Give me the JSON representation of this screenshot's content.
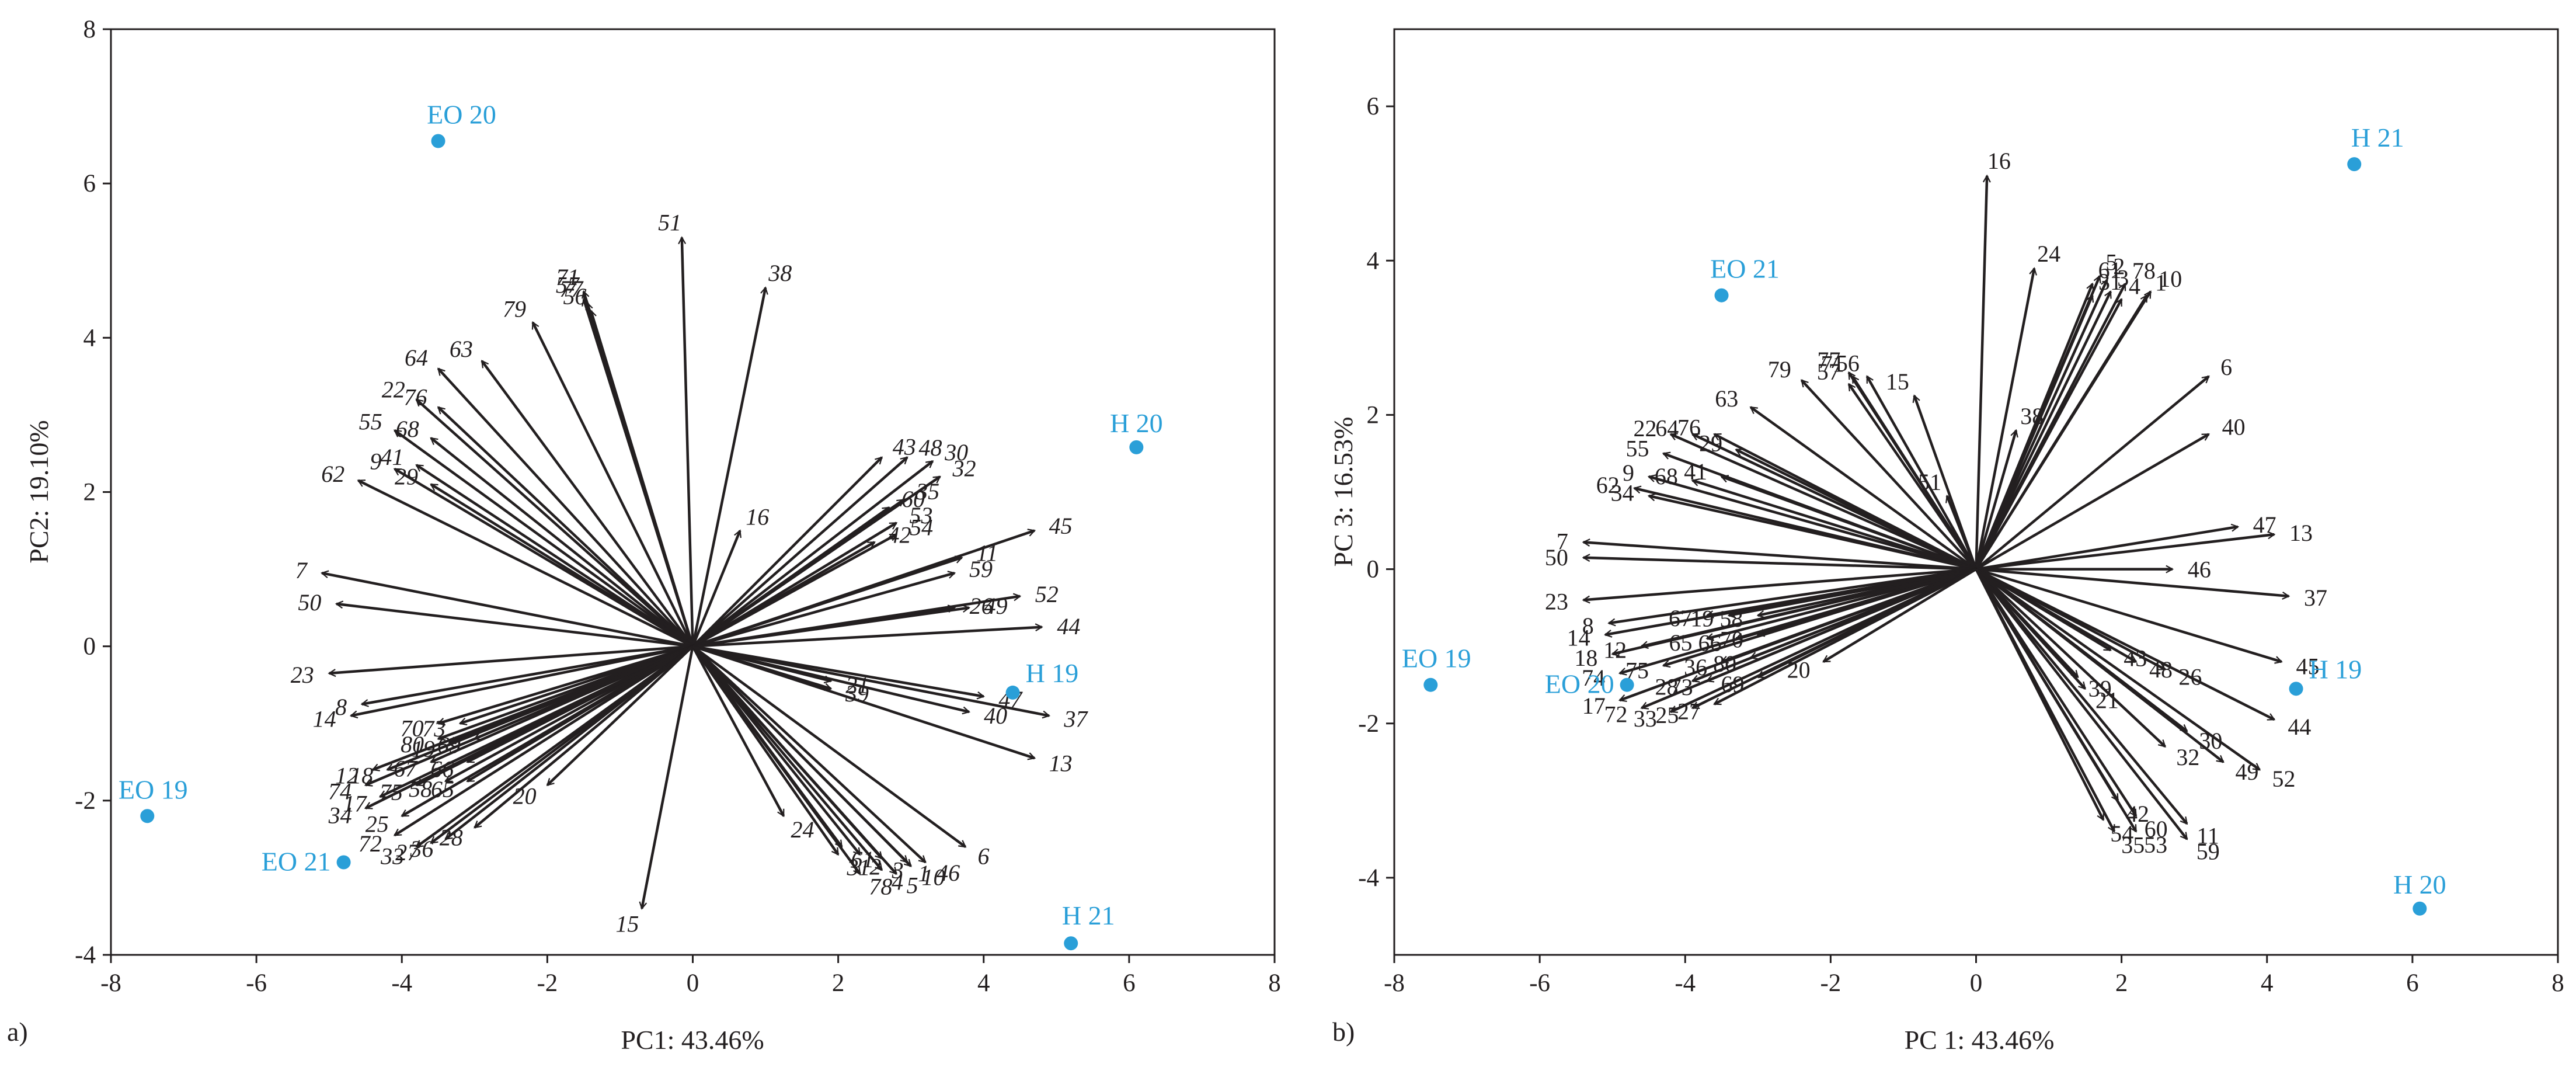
{
  "chart_data": [
    {
      "panel": "a)",
      "type": "scatter",
      "subtype": "pca-biplot",
      "xlabel": "PC1: 43.46%",
      "ylabel": "PC2: 19.10%",
      "xlim": [
        -8,
        8
      ],
      "ylim": [
        -4,
        8
      ],
      "xticks": [
        "-8",
        "-6",
        "-4",
        "-2",
        "0",
        "2",
        "4",
        "6",
        "8"
      ],
      "yticks": [
        "-4",
        "-2",
        "0",
        "2",
        "4",
        "6",
        "8"
      ],
      "label_style": "italic",
      "observations": [
        {
          "label": "EO 20",
          "x": -3.5,
          "y": 6.55
        },
        {
          "label": "H 20",
          "x": 6.1,
          "y": 2.58
        },
        {
          "label": "H 19",
          "x": 4.4,
          "y": -0.6
        },
        {
          "label": "EO 19",
          "x": -7.5,
          "y": -2.2
        },
        {
          "label": "EO 21",
          "x": -4.8,
          "y": -2.8
        },
        {
          "label": "H 21",
          "x": 5.2,
          "y": -3.85
        }
      ],
      "variables": [
        {
          "label": "51",
          "x": -0.15,
          "y": 5.3
        },
        {
          "label": "38",
          "x": 1.0,
          "y": 4.65
        },
        {
          "label": "71",
          "x": -1.5,
          "y": 4.6
        },
        {
          "label": "57",
          "x": -1.5,
          "y": 4.5
        },
        {
          "label": "77",
          "x": -1.45,
          "y": 4.45
        },
        {
          "label": "56",
          "x": -1.4,
          "y": 4.35
        },
        {
          "label": "79",
          "x": -2.2,
          "y": 4.2
        },
        {
          "label": "64",
          "x": -3.5,
          "y": 3.6
        },
        {
          "label": "63",
          "x": -2.9,
          "y": 3.7
        },
        {
          "label": "22",
          "x": -3.8,
          "y": 3.2
        },
        {
          "label": "76",
          "x": -3.5,
          "y": 3.1
        },
        {
          "label": "55",
          "x": -4.1,
          "y": 2.8
        },
        {
          "label": "68",
          "x": -3.6,
          "y": 2.7
        },
        {
          "label": "41",
          "x": -3.8,
          "y": 2.35
        },
        {
          "label": "9",
          "x": -4.1,
          "y": 2.3
        },
        {
          "label": "29",
          "x": -3.6,
          "y": 2.1
        },
        {
          "label": "62",
          "x": -4.6,
          "y": 2.15
        },
        {
          "label": "16",
          "x": 0.65,
          "y": 1.5
        },
        {
          "label": "43",
          "x": 2.6,
          "y": 2.45
        },
        {
          "label": "48",
          "x": 2.95,
          "y": 2.45
        },
        {
          "label": "30",
          "x": 3.3,
          "y": 2.4
        },
        {
          "label": "32",
          "x": 3.4,
          "y": 2.2
        },
        {
          "label": "60",
          "x": 2.7,
          "y": 1.8
        },
        {
          "label": "35",
          "x": 2.9,
          "y": 1.9
        },
        {
          "label": "53",
          "x": 2.8,
          "y": 1.6
        },
        {
          "label": "42",
          "x": 2.5,
          "y": 1.35
        },
        {
          "label": "54",
          "x": 2.8,
          "y": 1.45
        },
        {
          "label": "45",
          "x": 4.7,
          "y": 1.5
        },
        {
          "label": "11",
          "x": 3.7,
          "y": 1.15
        },
        {
          "label": "59",
          "x": 3.6,
          "y": 0.95
        },
        {
          "label": "26",
          "x": 3.6,
          "y": 0.5
        },
        {
          "label": "49",
          "x": 3.8,
          "y": 0.5
        },
        {
          "label": "52",
          "x": 4.5,
          "y": 0.65
        },
        {
          "label": "44",
          "x": 4.8,
          "y": 0.25
        },
        {
          "label": "21",
          "x": 1.9,
          "y": -0.45
        },
        {
          "label": "39",
          "x": 1.9,
          "y": -0.55
        },
        {
          "label": "47",
          "x": 4.0,
          "y": -0.65
        },
        {
          "label": "40",
          "x": 3.8,
          "y": -0.85
        },
        {
          "label": "37",
          "x": 4.9,
          "y": -0.9
        },
        {
          "label": "13",
          "x": 4.7,
          "y": -1.45
        },
        {
          "label": "7",
          "x": -5.1,
          "y": 0.95
        },
        {
          "label": "50",
          "x": -4.9,
          "y": 0.55
        },
        {
          "label": "23",
          "x": -5.0,
          "y": -0.35
        },
        {
          "label": "8",
          "x": -4.55,
          "y": -0.75
        },
        {
          "label": "14",
          "x": -4.7,
          "y": -0.9
        },
        {
          "label": "70",
          "x": -3.5,
          "y": -1.0
        },
        {
          "label": "73",
          "x": -3.2,
          "y": -1.0
        },
        {
          "label": "80",
          "x": -3.5,
          "y": -1.2
        },
        {
          "label": "19",
          "x": -3.35,
          "y": -1.25
        },
        {
          "label": "69",
          "x": -3.0,
          "y": -1.2
        },
        {
          "label": "12",
          "x": -4.4,
          "y": -1.6
        },
        {
          "label": "18",
          "x": -4.2,
          "y": -1.6
        },
        {
          "label": "67",
          "x": -3.6,
          "y": -1.5
        },
        {
          "label": "66",
          "x": -3.1,
          "y": -1.5
        },
        {
          "label": "74",
          "x": -4.5,
          "y": -1.8
        },
        {
          "label": "17",
          "x": -4.3,
          "y": -1.95
        },
        {
          "label": "75",
          "x": -3.8,
          "y": -1.8
        },
        {
          "label": "58",
          "x": -3.4,
          "y": -1.75
        },
        {
          "label": "65",
          "x": -3.1,
          "y": -1.75
        },
        {
          "label": "34",
          "x": -4.5,
          "y": -2.1
        },
        {
          "label": "25",
          "x": -4.0,
          "y": -2.2
        },
        {
          "label": "72",
          "x": -4.1,
          "y": -2.45
        },
        {
          "label": "33",
          "x": -3.8,
          "y": -2.6
        },
        {
          "label": "27",
          "x": -3.6,
          "y": -2.55
        },
        {
          "label": "36",
          "x": -3.4,
          "y": -2.5
        },
        {
          "label": "28",
          "x": -3.0,
          "y": -2.35
        },
        {
          "label": "20",
          "x": -2.0,
          "y": -1.8
        },
        {
          "label": "15",
          "x": -0.7,
          "y": -3.4
        },
        {
          "label": "24",
          "x": 1.25,
          "y": -2.2
        },
        {
          "label": "61",
          "x": 2.05,
          "y": -2.6
        },
        {
          "label": "31",
          "x": 2.0,
          "y": -2.7
        },
        {
          "label": "2",
          "x": 2.3,
          "y": -2.7
        },
        {
          "label": "3",
          "x": 2.6,
          "y": -2.75
        },
        {
          "label": "78",
          "x": 2.3,
          "y": -2.95
        },
        {
          "label": "4",
          "x": 2.6,
          "y": -2.9
        },
        {
          "label": "5",
          "x": 2.8,
          "y": -2.95
        },
        {
          "label": "1",
          "x": 2.95,
          "y": -2.8
        },
        {
          "label": "10",
          "x": 3.0,
          "y": -2.85
        },
        {
          "label": "46",
          "x": 3.2,
          "y": -2.8
        },
        {
          "label": "6",
          "x": 3.75,
          "y": -2.6
        }
      ]
    },
    {
      "panel": "b)",
      "type": "scatter",
      "subtype": "pca-biplot",
      "xlabel": "PC 1: 43.46%",
      "ylabel": "PC 3: 16.53%",
      "xlim": [
        -8,
        8
      ],
      "ylim": [
        -5,
        7
      ],
      "xticks": [
        "-8",
        "-6",
        "-4",
        "-2",
        "0",
        "2",
        "4",
        "6",
        "8"
      ],
      "yticks": [
        "-4",
        "-2",
        "0",
        "2",
        "4",
        "6"
      ],
      "label_style": "upright",
      "observations": [
        {
          "label": "H 21",
          "x": 5.2,
          "y": 5.25
        },
        {
          "label": "EO 21",
          "x": -3.5,
          "y": 3.55
        },
        {
          "label": "EO 19",
          "x": -7.5,
          "y": -1.5
        },
        {
          "label": "EO 20",
          "x": -4.8,
          "y": -1.5
        },
        {
          "label": "H 19",
          "x": 4.4,
          "y": -1.55
        },
        {
          "label": "H 20",
          "x": 6.1,
          "y": -4.4
        }
      ],
      "variables": [
        {
          "label": "16",
          "x": 0.15,
          "y": 5.1
        },
        {
          "label": "24",
          "x": 0.8,
          "y": 3.9
        },
        {
          "label": "5",
          "x": 1.7,
          "y": 3.8
        },
        {
          "label": "2",
          "x": 1.8,
          "y": 3.75
        },
        {
          "label": "78",
          "x": 2.05,
          "y": 3.7
        },
        {
          "label": "61",
          "x": 1.6,
          "y": 3.7
        },
        {
          "label": "3",
          "x": 1.85,
          "y": 3.6
        },
        {
          "label": "1",
          "x": 2.35,
          "y": 3.55
        },
        {
          "label": "31",
          "x": 1.6,
          "y": 3.55
        },
        {
          "label": "4",
          "x": 2.0,
          "y": 3.5
        },
        {
          "label": "10",
          "x": 2.4,
          "y": 3.6
        },
        {
          "label": "6",
          "x": 3.2,
          "y": 2.5
        },
        {
          "label": "40",
          "x": 3.2,
          "y": 1.75
        },
        {
          "label": "47",
          "x": 3.6,
          "y": 0.55
        },
        {
          "label": "13",
          "x": 4.1,
          "y": 0.45
        },
        {
          "label": "46",
          "x": 2.7,
          "y": 0.0
        },
        {
          "label": "37",
          "x": 4.3,
          "y": -0.35
        },
        {
          "label": "38",
          "x": 0.55,
          "y": 1.8
        },
        {
          "label": "51",
          "x": -0.4,
          "y": 0.95
        },
        {
          "label": "15",
          "x": -0.85,
          "y": 2.25
        },
        {
          "label": "71",
          "x": -1.7,
          "y": 2.5
        },
        {
          "label": "56",
          "x": -1.5,
          "y": 2.5
        },
        {
          "label": "77",
          "x": -1.75,
          "y": 2.55
        },
        {
          "label": "57",
          "x": -1.75,
          "y": 2.4
        },
        {
          "label": "79",
          "x": -2.4,
          "y": 2.45
        },
        {
          "label": "63",
          "x": -3.1,
          "y": 2.1
        },
        {
          "label": "22",
          "x": -4.2,
          "y": 1.75
        },
        {
          "label": "64",
          "x": -3.9,
          "y": 1.75
        },
        {
          "label": "76",
          "x": -3.6,
          "y": 1.75
        },
        {
          "label": "29",
          "x": -3.3,
          "y": 1.55
        },
        {
          "label": "55",
          "x": -4.3,
          "y": 1.5
        },
        {
          "label": "9",
          "x": -4.5,
          "y": 1.2
        },
        {
          "label": "41",
          "x": -3.5,
          "y": 1.2
        },
        {
          "label": "68",
          "x": -3.9,
          "y": 1.15
        },
        {
          "label": "62",
          "x": -4.7,
          "y": 1.05
        },
        {
          "label": "34",
          "x": -4.5,
          "y": 0.95
        },
        {
          "label": "7",
          "x": -5.4,
          "y": 0.35
        },
        {
          "label": "50",
          "x": -5.4,
          "y": 0.15
        },
        {
          "label": "23",
          "x": -5.4,
          "y": -0.4
        },
        {
          "label": "8",
          "x": -5.05,
          "y": -0.7
        },
        {
          "label": "67",
          "x": -3.7,
          "y": -0.6
        },
        {
          "label": "19",
          "x": -3.4,
          "y": -0.6
        },
        {
          "label": "58",
          "x": -3.0,
          "y": -0.6
        },
        {
          "label": "14",
          "x": -5.1,
          "y": -0.85
        },
        {
          "label": "65",
          "x": -3.7,
          "y": -0.9
        },
        {
          "label": "66",
          "x": -3.3,
          "y": -0.9
        },
        {
          "label": "70",
          "x": -3.0,
          "y": -0.85
        },
        {
          "label": "12",
          "x": -4.6,
          "y": -1.0
        },
        {
          "label": "18",
          "x": -5.0,
          "y": -1.1
        },
        {
          "label": "36",
          "x": -3.5,
          "y": -1.2
        },
        {
          "label": "80",
          "x": -3.1,
          "y": -1.15
        },
        {
          "label": "75",
          "x": -4.3,
          "y": -1.25
        },
        {
          "label": "74",
          "x": -4.9,
          "y": -1.35
        },
        {
          "label": "28",
          "x": -3.9,
          "y": -1.45
        },
        {
          "label": "73",
          "x": -3.7,
          "y": -1.45
        },
        {
          "label": "69",
          "x": -3.0,
          "y": -1.4
        },
        {
          "label": "20",
          "x": -2.1,
          "y": -1.2
        },
        {
          "label": "17",
          "x": -4.9,
          "y": -1.7
        },
        {
          "label": "72",
          "x": -4.6,
          "y": -1.8
        },
        {
          "label": "33",
          "x": -4.2,
          "y": -1.85
        },
        {
          "label": "25",
          "x": -3.9,
          "y": -1.8
        },
        {
          "label": "27",
          "x": -3.6,
          "y": -1.75
        },
        {
          "label": "43",
          "x": 1.85,
          "y": -1.05
        },
        {
          "label": "48",
          "x": 2.2,
          "y": -1.2
        },
        {
          "label": "26",
          "x": 2.6,
          "y": -1.3
        },
        {
          "label": "45",
          "x": 4.2,
          "y": -1.2
        },
        {
          "label": "44",
          "x": 4.1,
          "y": -1.95
        },
        {
          "label": "39",
          "x": 1.4,
          "y": -1.4
        },
        {
          "label": "21",
          "x": 1.5,
          "y": -1.55
        },
        {
          "label": "30",
          "x": 2.9,
          "y": -2.1
        },
        {
          "label": "32",
          "x": 2.6,
          "y": -2.3
        },
        {
          "label": "49",
          "x": 3.4,
          "y": -2.5
        },
        {
          "label": "52",
          "x": 3.9,
          "y": -2.6
        },
        {
          "label": "42",
          "x": 1.95,
          "y": -3.0
        },
        {
          "label": "54",
          "x": 1.75,
          "y": -3.25
        },
        {
          "label": "60",
          "x": 2.2,
          "y": -3.2
        },
        {
          "label": "11",
          "x": 2.9,
          "y": -3.3
        },
        {
          "label": "35",
          "x": 1.9,
          "y": -3.4
        },
        {
          "label": "53",
          "x": 2.2,
          "y": -3.4
        },
        {
          "label": "59",
          "x": 2.9,
          "y": -3.5
        }
      ]
    }
  ]
}
